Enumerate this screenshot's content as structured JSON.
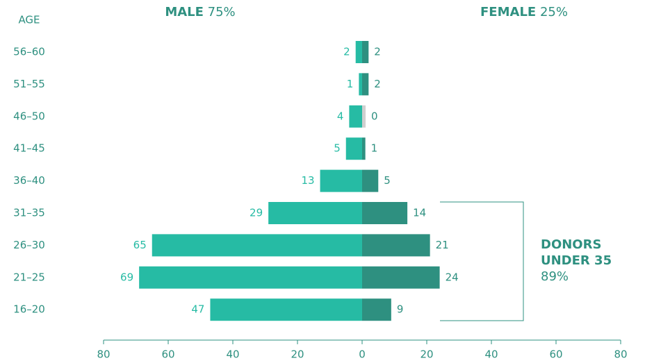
{
  "chart_data": {
    "type": "pyramid",
    "y_axis_label": "AGE",
    "categories": [
      "56–60",
      "51–55",
      "46–50",
      "41–45",
      "36–40",
      "31–35",
      "26–30",
      "21–25",
      "16–20"
    ],
    "series": [
      {
        "name": "MALE",
        "share": "75%",
        "side": "left",
        "color": "#26bba4",
        "values": [
          2,
          1,
          4,
          5,
          13,
          29,
          65,
          69,
          47
        ]
      },
      {
        "name": "FEMALE",
        "share": "25%",
        "side": "right",
        "color": "#2e9080",
        "values": [
          2,
          2,
          0,
          1,
          5,
          14,
          21,
          24,
          9
        ]
      }
    ],
    "zero_color": "#cfcfcf",
    "xlim": [
      -80,
      80
    ],
    "xticks": [
      {
        "value": -80,
        "label": "80"
      },
      {
        "value": -60,
        "label": "60"
      },
      {
        "value": -40,
        "label": "40"
      },
      {
        "value": -20,
        "label": "20"
      },
      0,
      20,
      40,
      60,
      80
    ],
    "annotation": {
      "lines": [
        "DONORS",
        "UNDER 35"
      ],
      "value": "89%"
    }
  }
}
